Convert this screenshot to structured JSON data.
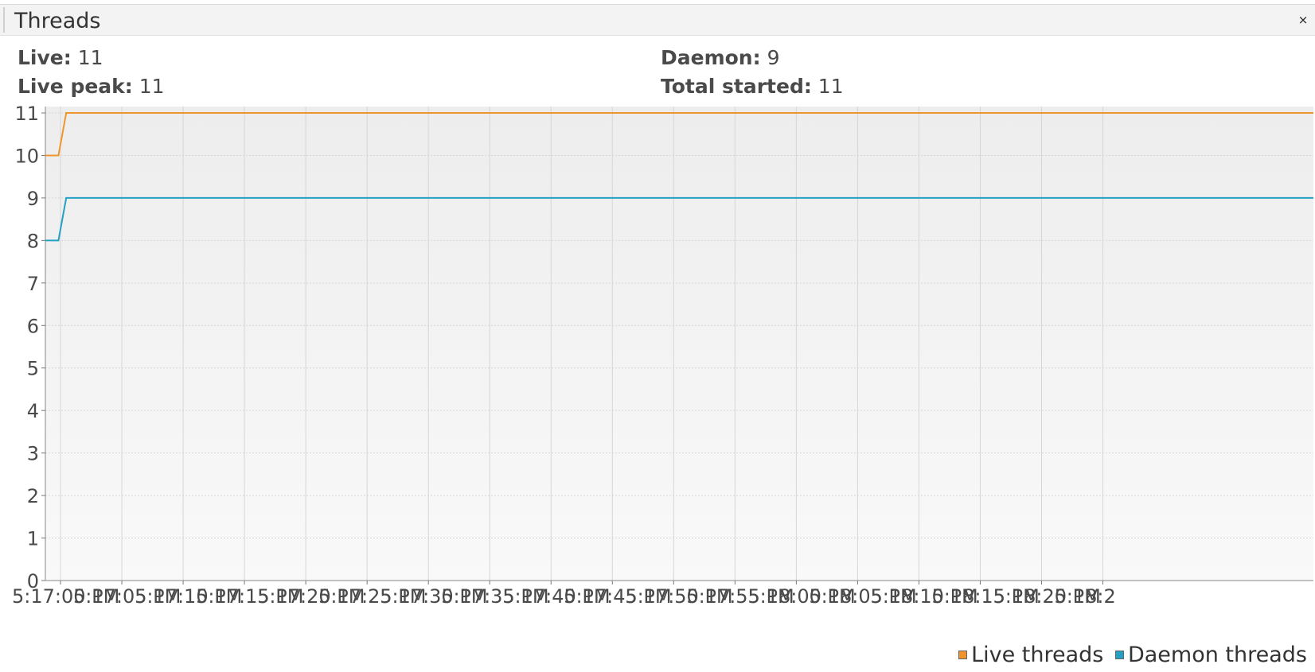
{
  "panel": {
    "title": "Threads",
    "close_label": "×"
  },
  "stats": {
    "live_label": "Live:",
    "live_value": "11",
    "peak_label": "Live peak:",
    "peak_value": "11",
    "daemon_label": "Daemon:",
    "daemon_value": "9",
    "total_label": "Total started:",
    "total_value": "11"
  },
  "colors": {
    "live": "#f0952e",
    "daemon": "#23a0c4"
  },
  "chart_data": {
    "type": "line",
    "title": "",
    "xlabel": "",
    "ylabel": "",
    "ylim": [
      0,
      11
    ],
    "yticks": [
      0,
      1,
      2,
      3,
      4,
      5,
      6,
      7,
      8,
      9,
      10,
      11
    ],
    "xlim_seconds": [
      -3.7,
      306.5
    ],
    "xticks": [
      {
        "t": 0,
        "label": "5:17:00 PM"
      },
      {
        "t": 15,
        "label": "5:17:05 PM"
      },
      {
        "t": 30,
        "label": "5:17:10 PM"
      },
      {
        "t": 45,
        "label": "5:17:15 PM"
      },
      {
        "t": 60,
        "label": "5:17:20 PM"
      },
      {
        "t": 75,
        "label": "5:17:25 PM"
      },
      {
        "t": 90,
        "label": "5:17:30 PM"
      },
      {
        "t": 105,
        "label": "5:17:35 PM"
      },
      {
        "t": 120,
        "label": "5:17:40 PM"
      },
      {
        "t": 135,
        "label": "5:17:45 PM"
      },
      {
        "t": 150,
        "label": "5:17:50 PM"
      },
      {
        "t": 165,
        "label": "5:17:55 PM"
      },
      {
        "t": 180,
        "label": "5:18:00 PM"
      },
      {
        "t": 195,
        "label": "5:18:05 PM"
      },
      {
        "t": 210,
        "label": "5:18:10 PM"
      },
      {
        "t": 225,
        "label": "5:18:15 PM"
      },
      {
        "t": 240,
        "label": "5:18:20 PM"
      },
      {
        "t": 255,
        "label": "5:18:2"
      }
    ],
    "grid": true,
    "legend": "bottom-right",
    "series": [
      {
        "name": "Live threads",
        "color": "#f0952e",
        "points": [
          [
            -3.7,
            10
          ],
          [
            -0.5,
            10
          ],
          [
            1.4,
            11
          ],
          [
            306.5,
            11
          ]
        ]
      },
      {
        "name": "Daemon threads",
        "color": "#23a0c4",
        "points": [
          [
            -3.7,
            8
          ],
          [
            -0.5,
            8
          ],
          [
            1.4,
            9
          ],
          [
            306.5,
            9
          ]
        ]
      }
    ]
  }
}
